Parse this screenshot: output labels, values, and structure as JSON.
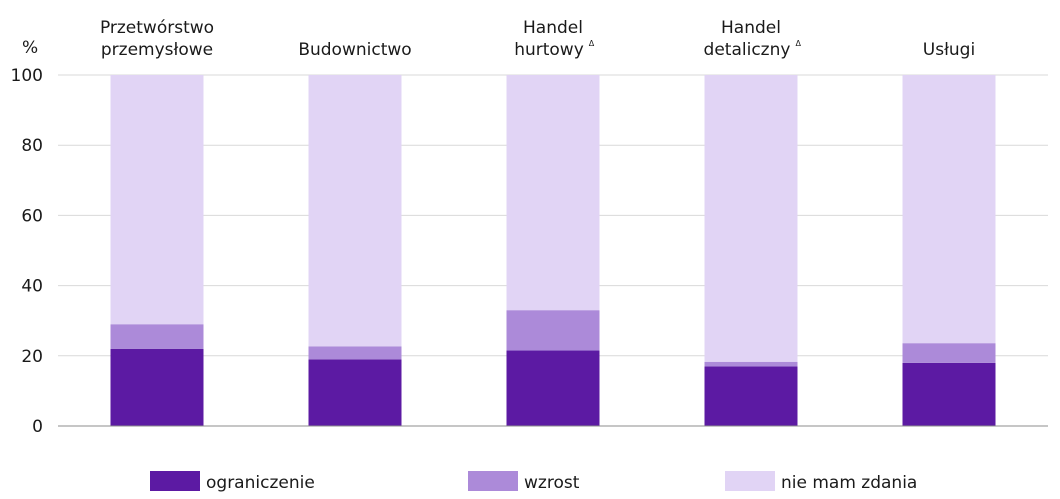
{
  "chart_data": {
    "type": "bar",
    "stacked": true,
    "ylabel": "%",
    "ylim": [
      0,
      100
    ],
    "yticks": [
      0,
      20,
      40,
      60,
      80,
      100
    ],
    "grid": true,
    "legend_position": "bottom",
    "categories": [
      {
        "lines": [
          "Przetwórstwo",
          "przemysłowe"
        ],
        "marker": ""
      },
      {
        "lines": [
          "Budownictwo"
        ],
        "marker": ""
      },
      {
        "lines": [
          "Handel",
          "hurtowy"
        ],
        "marker": "Δ"
      },
      {
        "lines": [
          "Handel",
          "detaliczny"
        ],
        "marker": "Δ"
      },
      {
        "lines": [
          "Usługi"
        ],
        "marker": ""
      }
    ],
    "series": [
      {
        "name": "ograniczenie",
        "color": "#5c1aa3",
        "values": [
          22,
          19,
          21.5,
          17,
          18
        ]
      },
      {
        "name": "wzrost",
        "color": "#ac8ad9",
        "values": [
          7,
          3.7,
          11.5,
          1.3,
          5.6
        ]
      },
      {
        "name": "nie mam zdania",
        "color": "#e1d4f5",
        "values": [
          71,
          77.3,
          67,
          81.7,
          76.4
        ]
      }
    ]
  },
  "colors": {
    "grid": "#d9d9d9",
    "axis": "#8c8c8c",
    "text": "#1a1a1a"
  }
}
